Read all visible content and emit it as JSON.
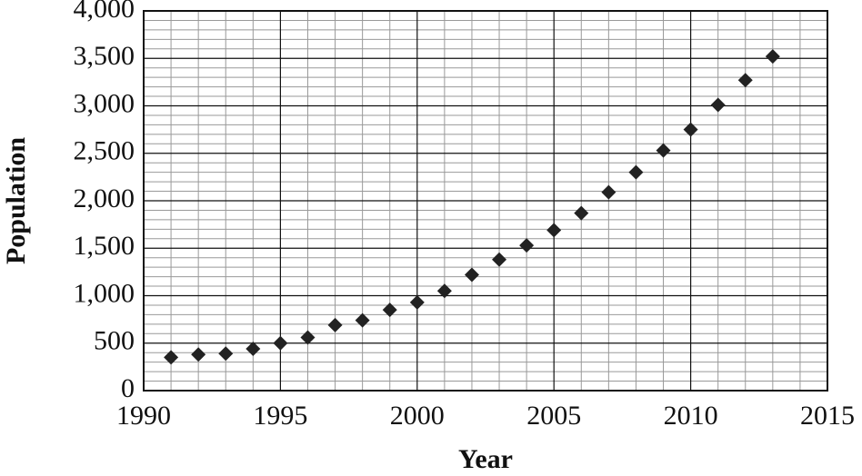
{
  "chart_data": {
    "type": "scatter",
    "x_label": "Year",
    "y_label": "Population",
    "x": [
      1991,
      1992,
      1993,
      1994,
      1995,
      1996,
      1997,
      1998,
      1999,
      2000,
      2001,
      2002,
      2003,
      2004,
      2005,
      2006,
      2007,
      2008,
      2009,
      2010,
      2011,
      2012,
      2013
    ],
    "values": [
      350,
      380,
      390,
      440,
      500,
      560,
      690,
      740,
      850,
      930,
      1050,
      1220,
      1380,
      1530,
      1690,
      1870,
      2090,
      2300,
      2530,
      2750,
      3010,
      3270,
      3520
    ],
    "color": "#222222",
    "xlim": [
      1990,
      2015
    ],
    "xticks": [
      1990,
      1995,
      2000,
      2005,
      2010,
      2015
    ],
    "ylim": [
      0,
      4000
    ],
    "yticks": [
      0,
      500,
      {
        "value": 1000,
        "label": "1,000"
      },
      {
        "value": 1500,
        "label": "1,500"
      },
      {
        "value": 2000,
        "label": "2,000"
      },
      {
        "value": 2500,
        "label": "2,500"
      },
      {
        "value": 3000,
        "label": "3,000"
      },
      {
        "value": 3500,
        "label": "3,500"
      },
      {
        "value": 4000,
        "label": "4,000"
      }
    ],
    "grid": true
  }
}
